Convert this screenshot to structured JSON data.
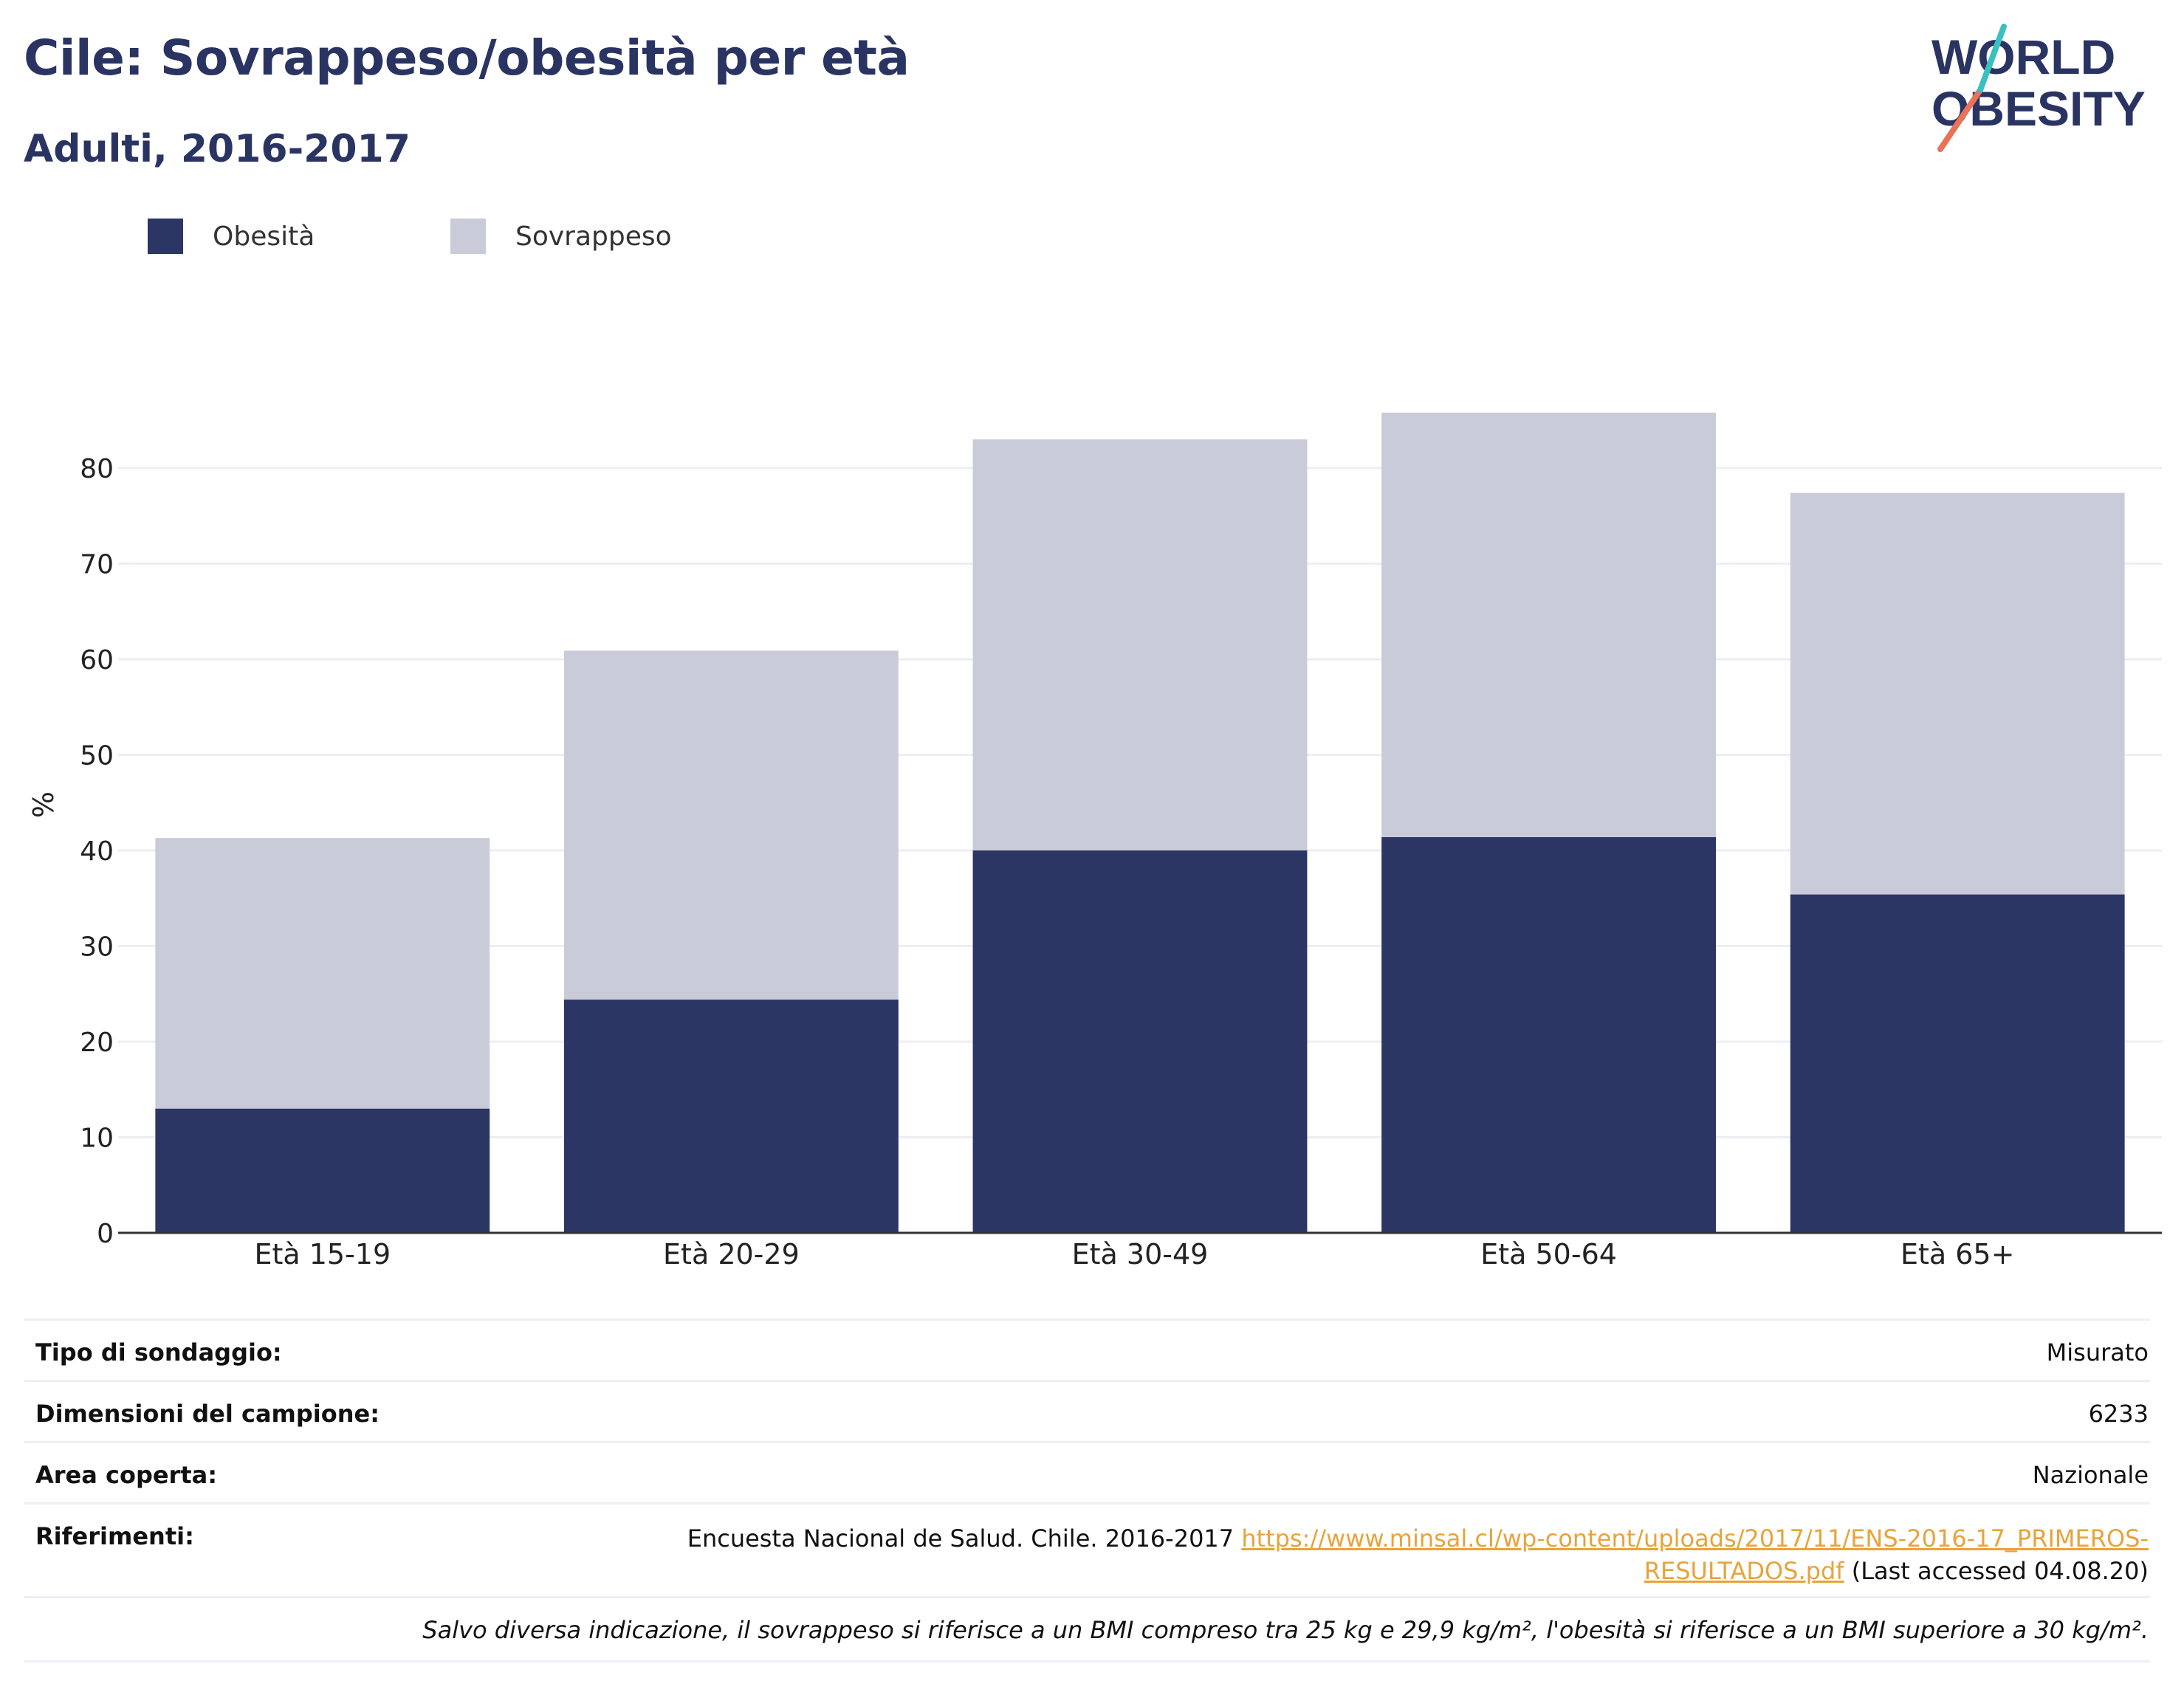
{
  "header": {
    "title": "Cile: Sovrappeso/obesità per età",
    "subtitle": "Adulti, 2016-2017"
  },
  "logo": {
    "line1": "WORLD",
    "line2": "OBESITY"
  },
  "colors": {
    "obesity": "#2b3664",
    "overweight": "#c9ccd8",
    "text": "#2a3463",
    "slash_orange": "#e8735a",
    "slash_teal": "#3bbfc1"
  },
  "legend": [
    {
      "label": "Obesità",
      "color": "#2b3664"
    },
    {
      "label": "Sovrappeso",
      "color": "#c9ccd8"
    }
  ],
  "chart_data": {
    "type": "bar",
    "stacked": true,
    "categories": [
      "Età 15-19",
      "Età 20-29",
      "Età 30-49",
      "Età 50-64",
      "Età 65+"
    ],
    "series": [
      {
        "name": "Obesità",
        "values": [
          13.0,
          24.4,
          40.0,
          41.4,
          35.4
        ]
      },
      {
        "name": "Sovrappeso",
        "values": [
          28.3,
          36.5,
          43.0,
          44.4,
          42.0
        ]
      }
    ],
    "ylabel": "%",
    "xlabel": "",
    "ylim": [
      0,
      88
    ],
    "yticks": [
      0,
      10,
      20,
      30,
      40,
      50,
      60,
      70,
      80
    ],
    "grid": true,
    "legend_position": "top-left"
  },
  "info": {
    "survey_type": {
      "label": "Tipo di sondaggio:",
      "value": "Misurato"
    },
    "sample_size": {
      "label": "Dimensioni del campione:",
      "value": "6233"
    },
    "area": {
      "label": "Area coperta:",
      "value": "Nazionale"
    },
    "references": {
      "label": "Riferimenti:",
      "text": "Encuesta Nacional de Salud. Chile. 2016-2017",
      "link_line1": "https://www.minsal.cl/wp-content/uploads/2017/11/ENS-2016-17_PRIMEROS-",
      "link_line2": "RESULTADOS.pdf",
      "accessed": "(Last accessed 04.08.20)"
    },
    "note": "Salvo diversa indicazione, il sovrappeso si riferisce a un BMI compreso tra 25 kg e 29,9 kg/m², l'obesità si riferisce a un BMI superiore a 30 kg/m²."
  }
}
